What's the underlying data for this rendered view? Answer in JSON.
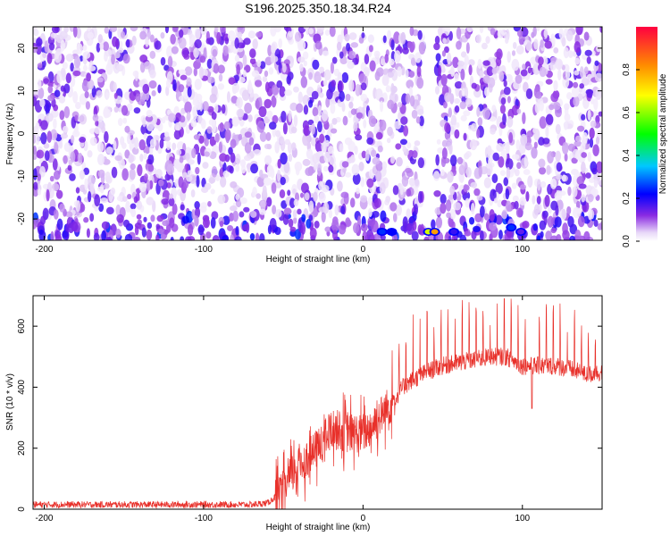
{
  "title": "S196.2025.350.18.34.R24",
  "chart_data": [
    {
      "type": "heatmap",
      "xlabel": "Height of straight line (km)",
      "ylabel": "Frequency (Hz)",
      "xlim": [
        -207,
        150
      ],
      "ylim": [
        -25,
        25
      ],
      "x_ticks": [
        -200,
        -100,
        0,
        100
      ],
      "y_ticks": [
        -20,
        -10,
        0,
        10,
        20
      ],
      "colorbar": {
        "label": "Normalized spectral amplitude",
        "range": [
          0,
          1
        ],
        "ticks": [
          0.0,
          0.2,
          0.4,
          0.6,
          0.8
        ],
        "colormap": "rainbow (white, violet, blue, cyan, green, yellow, orange, red)"
      },
      "hotspots": [
        {
          "x": 12,
          "y": -23,
          "value": 0.25
        },
        {
          "x": 18,
          "y": -23,
          "value": 0.22
        },
        {
          "x": 41,
          "y": -23,
          "value": 0.65
        },
        {
          "x": 45,
          "y": -23,
          "value": 0.8
        },
        {
          "x": 57,
          "y": -23,
          "value": 0.18
        },
        {
          "x": 93,
          "y": -22,
          "value": 0.25
        },
        {
          "x": 99,
          "y": -23,
          "value": 0.15
        }
      ],
      "gap_band_x": [
        38,
        46
      ],
      "background_level": 0.05
    },
    {
      "type": "line",
      "xlabel": "Height of straight line (km)",
      "ylabel": "SNR (10 * v/v)",
      "xlim": [
        -207,
        150
      ],
      "ylim": [
        0,
        700
      ],
      "x_ticks": [
        -200,
        -100,
        0,
        100
      ],
      "y_ticks": [
        0,
        200,
        400,
        600
      ],
      "color": "#e8302a",
      "series": [
        {
          "x": [
            -207,
            -180,
            -150,
            -120,
            -90,
            -70,
            -60,
            -50,
            -45,
            -40,
            -35,
            -30,
            -25,
            -20,
            -15,
            -10,
            -5,
            0,
            5,
            10,
            15,
            20,
            25,
            30,
            40,
            50,
            60,
            70,
            80,
            90,
            100,
            110,
            120,
            130,
            140,
            150
          ],
          "values": [
            15,
            15,
            15,
            15,
            15,
            15,
            20,
            60,
            110,
            150,
            160,
            190,
            220,
            260,
            260,
            250,
            250,
            250,
            270,
            300,
            330,
            360,
            400,
            420,
            450,
            470,
            480,
            490,
            500,
            500,
            470,
            470,
            470,
            460,
            440,
            450
          ]
        }
      ],
      "spike_period_km": 4.4,
      "spike_start_km": 18,
      "spike_max": 690
    }
  ]
}
